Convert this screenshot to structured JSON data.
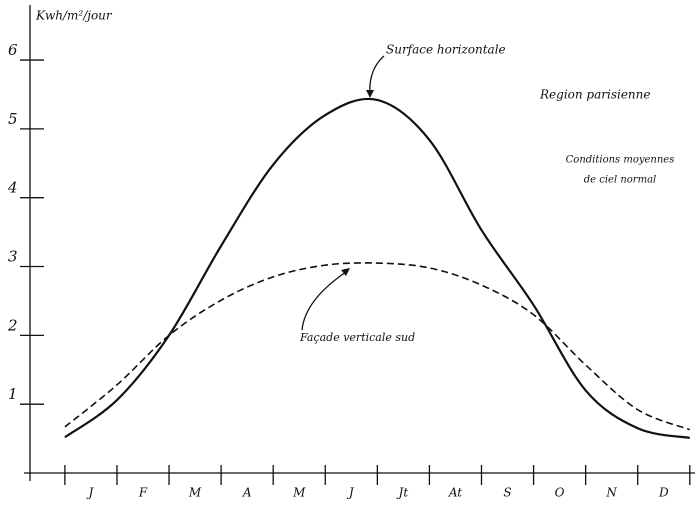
{
  "chart_data": {
    "type": "line",
    "y_label": "Kwh/m²/jour",
    "categories": [
      "J",
      "F",
      "M",
      "A",
      "M",
      "J",
      "Jt",
      "At",
      "S",
      "O",
      "N",
      "D"
    ],
    "xlim": [
      -0.67,
      12.1
    ],
    "ylim": [
      0,
      6.8
    ],
    "yticks": [
      1,
      2,
      3,
      4,
      5,
      6
    ],
    "series": [
      {
        "name": "Surface horizontale",
        "color": "#111111",
        "dash": false,
        "x": [
          0,
          1,
          2,
          3,
          4,
          5,
          6,
          7,
          8,
          9,
          10,
          11,
          12
        ],
        "values": [
          0.52,
          1.06,
          2.0,
          3.3,
          4.48,
          5.2,
          5.42,
          4.84,
          3.53,
          2.44,
          1.2,
          0.65,
          0.51
        ]
      },
      {
        "name": "Façade verticale sud",
        "color": "#111111",
        "dash": true,
        "x": [
          0,
          1,
          2,
          3,
          4,
          5,
          6,
          7,
          8,
          9,
          10,
          11,
          12
        ],
        "values": [
          0.67,
          1.28,
          2.0,
          2.51,
          2.85,
          3.02,
          3.05,
          2.98,
          2.73,
          2.3,
          1.57,
          0.92,
          0.63
        ]
      }
    ],
    "annotations": [
      "Region parisienne",
      "Conditions moyennes",
      "de ciel normal"
    ]
  }
}
